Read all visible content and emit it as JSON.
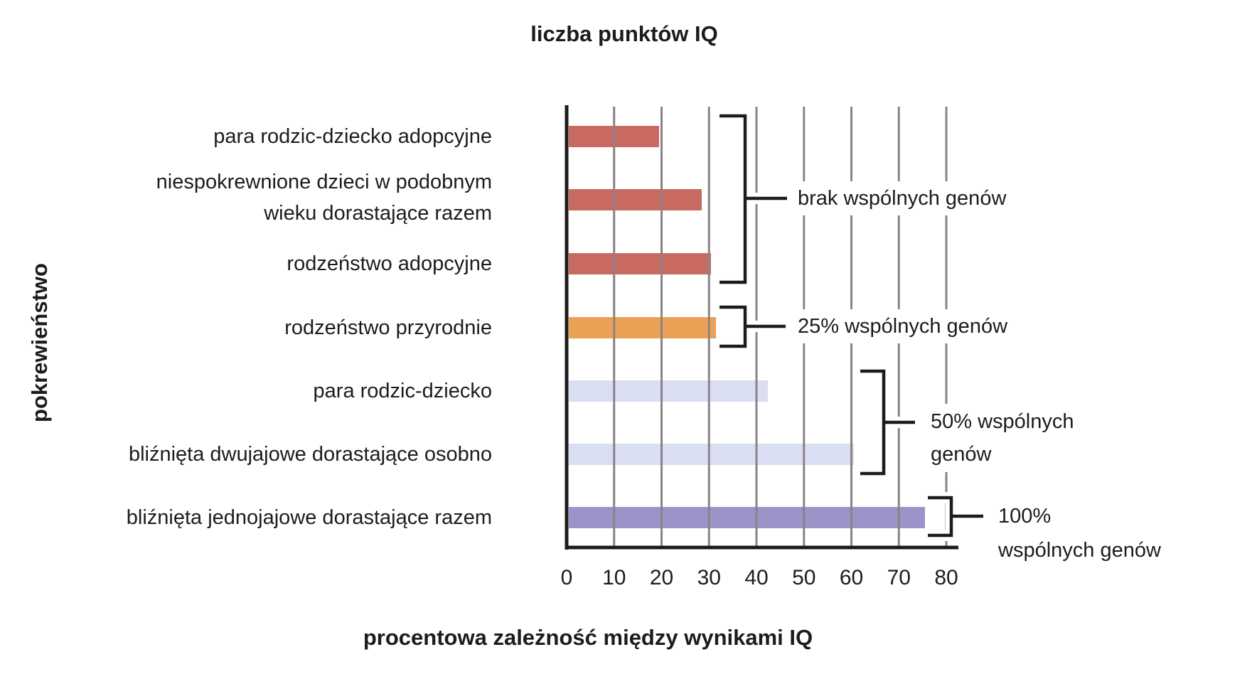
{
  "title": "liczba punktów IQ",
  "y_axis_label": "pokrewieństwo",
  "x_axis_label": "procentowa zależność między wynikami IQ",
  "chart_data": {
    "type": "bar",
    "orientation": "horizontal",
    "title": "liczba punktów IQ",
    "xlabel": "procentowa zależność między wynikami IQ",
    "ylabel": "pokrewieństwo",
    "categories": [
      "para rodzic-dziecko adopcyjne",
      "niespokrewnione dzieci w podobnym\nwieku dorastające razem",
      "rodzeństwo adopcyjne",
      "rodzeństwo przyrodnie",
      "para rodzic-dziecko",
      "bliźnięta dwujajowe dorastające osobno",
      "bliźnięta jednojajowe dorastające razem"
    ],
    "values": [
      19,
      28,
      30,
      31,
      42,
      60,
      75
    ],
    "bar_colors": [
      "#C96A60",
      "#C96A60",
      "#C96A60",
      "#EAA155",
      "#D9DEF2",
      "#D9DEF2",
      "#9B94C9"
    ],
    "x_ticks": [
      0,
      10,
      20,
      30,
      40,
      50,
      60,
      70,
      80
    ],
    "xlim": [
      0,
      80
    ],
    "grid": true,
    "grid_color": "#8B8287",
    "axis_color": "#1C1C1C",
    "annotations": [
      {
        "label": "brak wspólnych genów",
        "bars_from": 0,
        "bars_to": 2
      },
      {
        "label": "25% wspólnych genów",
        "bars_from": 3,
        "bars_to": 3
      },
      {
        "label": "50% wspólnych\ngenów",
        "bars_from": 4,
        "bars_to": 5
      },
      {
        "label": "100%\nwspólnych genów",
        "bars_from": 6,
        "bars_to": 6
      }
    ]
  }
}
